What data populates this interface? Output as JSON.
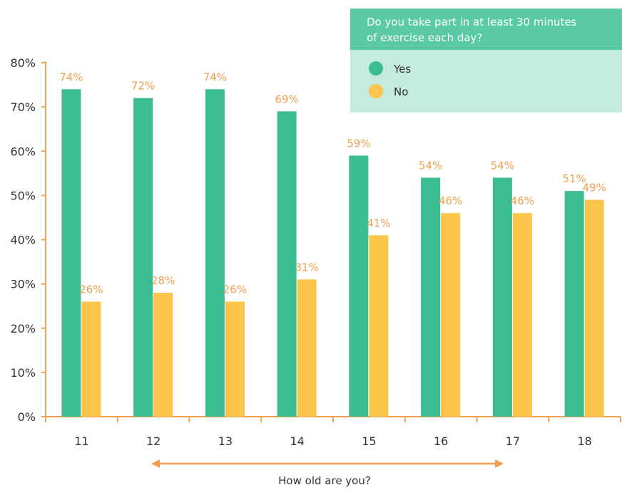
{
  "colors": {
    "yes": "#3cbc92",
    "no": "#fbc44a",
    "axis": "#f0a050",
    "label_no": "#f0a050",
    "label_yes": "#f0a050",
    "legend_header": "#5ac9a6",
    "legend_body": "#c5ebdf"
  },
  "chart_data": {
    "type": "bar",
    "categories": [
      "11",
      "12",
      "13",
      "14",
      "15",
      "16",
      "17",
      "18"
    ],
    "series": [
      {
        "name": "Yes",
        "values": [
          74,
          72,
          74,
          69,
          59,
          54,
          54,
          51
        ],
        "labels": [
          "74%",
          "72%",
          "74%",
          "69%",
          "59%",
          "54%",
          "54%",
          "51%"
        ]
      },
      {
        "name": "No",
        "values": [
          26,
          28,
          26,
          31,
          41,
          46,
          46,
          49
        ],
        "labels": [
          "26%",
          "28%",
          "26%",
          "31%",
          "41%",
          "46%",
          "46%",
          "49%"
        ]
      }
    ],
    "title": "",
    "xlabel": "How old are you?",
    "ylabel": "",
    "ylim": [
      0,
      80
    ],
    "yticks": [
      "0%",
      "10%",
      "20%",
      "30%",
      "40%",
      "50%",
      "60%",
      "70%",
      "80%"
    ],
    "legend": {
      "title_lines": [
        "Do you take part in at least 30 minutes",
        "of exercise each day?"
      ],
      "items": [
        "Yes",
        "No"
      ],
      "placement": "top-right"
    },
    "grid": false
  }
}
